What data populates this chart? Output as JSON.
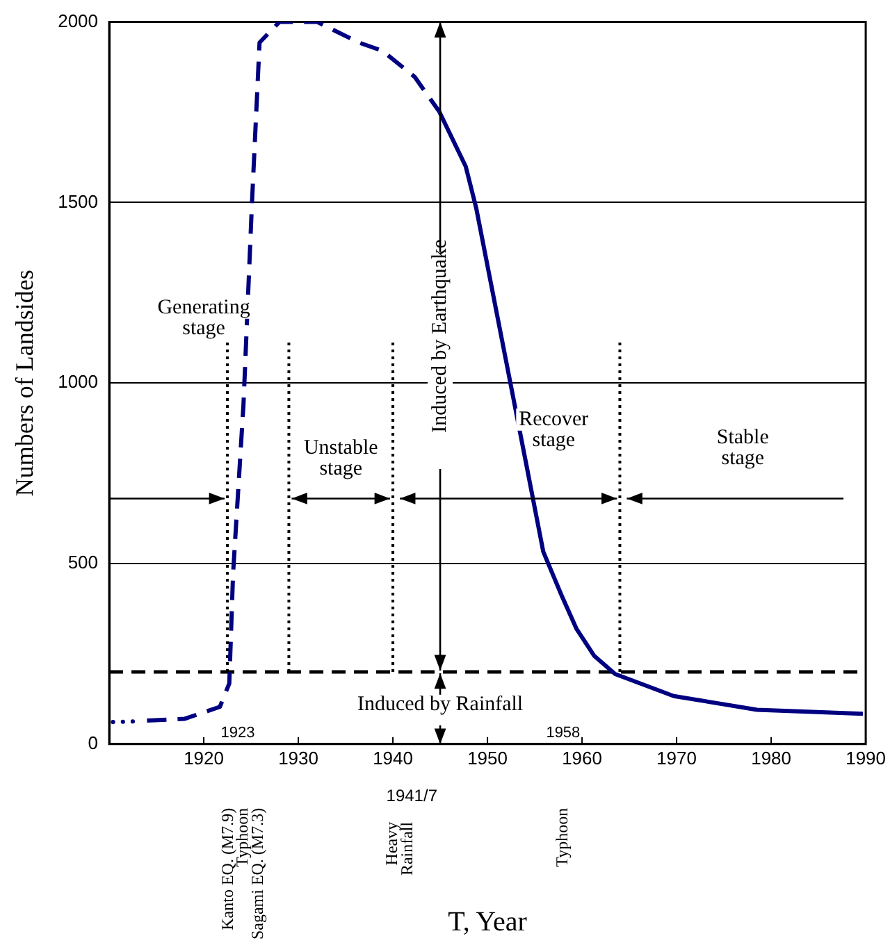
{
  "chart_data": {
    "type": "line",
    "xlabel": "T, Year",
    "ylabel": "Numbers of Landsides",
    "xlim": [
      1910,
      1990
    ],
    "xticks": [
      1920,
      1930,
      1940,
      1950,
      1960,
      1970,
      1980,
      1990
    ],
    "ylim": [
      0,
      2000
    ],
    "yticks": [
      0,
      500,
      1000,
      1500,
      2000
    ],
    "grid": "y",
    "legend": false,
    "marker": "none",
    "series": [
      {
        "color": "#000080",
        "line_style": "dotted",
        "x": [
          1910.4,
          1913.3
        ],
        "values": [
          61,
          63
        ]
      },
      {
        "color": "#000080",
        "line_style": "dashed",
        "x": [
          1914,
          1918,
          1921.7,
          1922.7,
          1923.1,
          1924.2,
          1925.1,
          1925.9,
          1928,
          1932,
          1936.4,
          1938.9,
          1942.3,
          1944.9
        ],
        "values": [
          65,
          70,
          103,
          168,
          472,
          940,
          1500,
          1943,
          2000,
          2000,
          1943,
          1920,
          1848,
          1752
        ]
      },
      {
        "color": "#000080",
        "line_style": "solid",
        "x": [
          1944.9,
          1947.7,
          1948.8,
          1952.5,
          1954,
          1955.9,
          1957.9,
          1959.4,
          1961.3,
          1963.5,
          1969.7,
          1978.5,
          1989.7
        ],
        "values": [
          1752,
          1600,
          1486,
          990,
          789,
          533,
          408,
          320,
          244,
          194,
          133,
          95,
          84
        ]
      }
    ],
    "ref_lines": [
      {
        "axis": "y",
        "value": 200,
        "color": "#000000",
        "line_style": "dashed"
      },
      {
        "axis": "x",
        "value": 1922.5,
        "color": "#000000",
        "line_style": "dotted"
      },
      {
        "axis": "x",
        "value": 1929,
        "color": "#000000",
        "line_style": "dotted"
      },
      {
        "axis": "x",
        "value": 1940,
        "color": "#000000",
        "line_style": "dotted"
      },
      {
        "axis": "x",
        "value": 1964,
        "color": "#000000",
        "line_style": "dotted"
      }
    ],
    "annotations": [
      "Generating stage",
      "Unstable stage",
      "Induced by Earthquake",
      "Recover stage",
      "Stable stage",
      "Induced by Rainfall",
      "1923",
      "1958",
      "Kanto EQ. (M7.9)",
      "Typhoon",
      "Sagami EQ. (M7.3)",
      "1941/7",
      "Heavy Rainfall",
      "Typhoon"
    ]
  }
}
